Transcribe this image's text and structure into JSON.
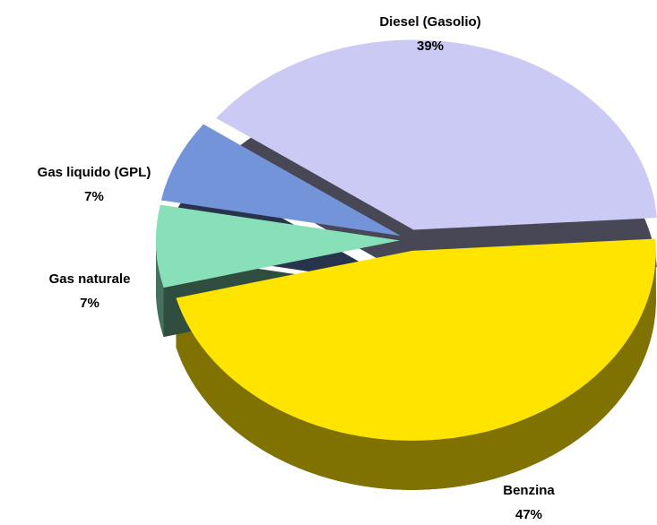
{
  "chart_data": {
    "type": "pie3d",
    "categories": [
      "Benzina",
      "Gas naturale",
      "Gas liquido (GPL)",
      "Diesel (Gasolio)"
    ],
    "values": [
      47,
      7,
      7,
      39
    ],
    "value_labels": [
      "47%",
      "7%",
      "7%",
      "39%"
    ],
    "colors": [
      "#ffe400",
      "#88e0b8",
      "#7394d8",
      "#cacaf4"
    ]
  }
}
